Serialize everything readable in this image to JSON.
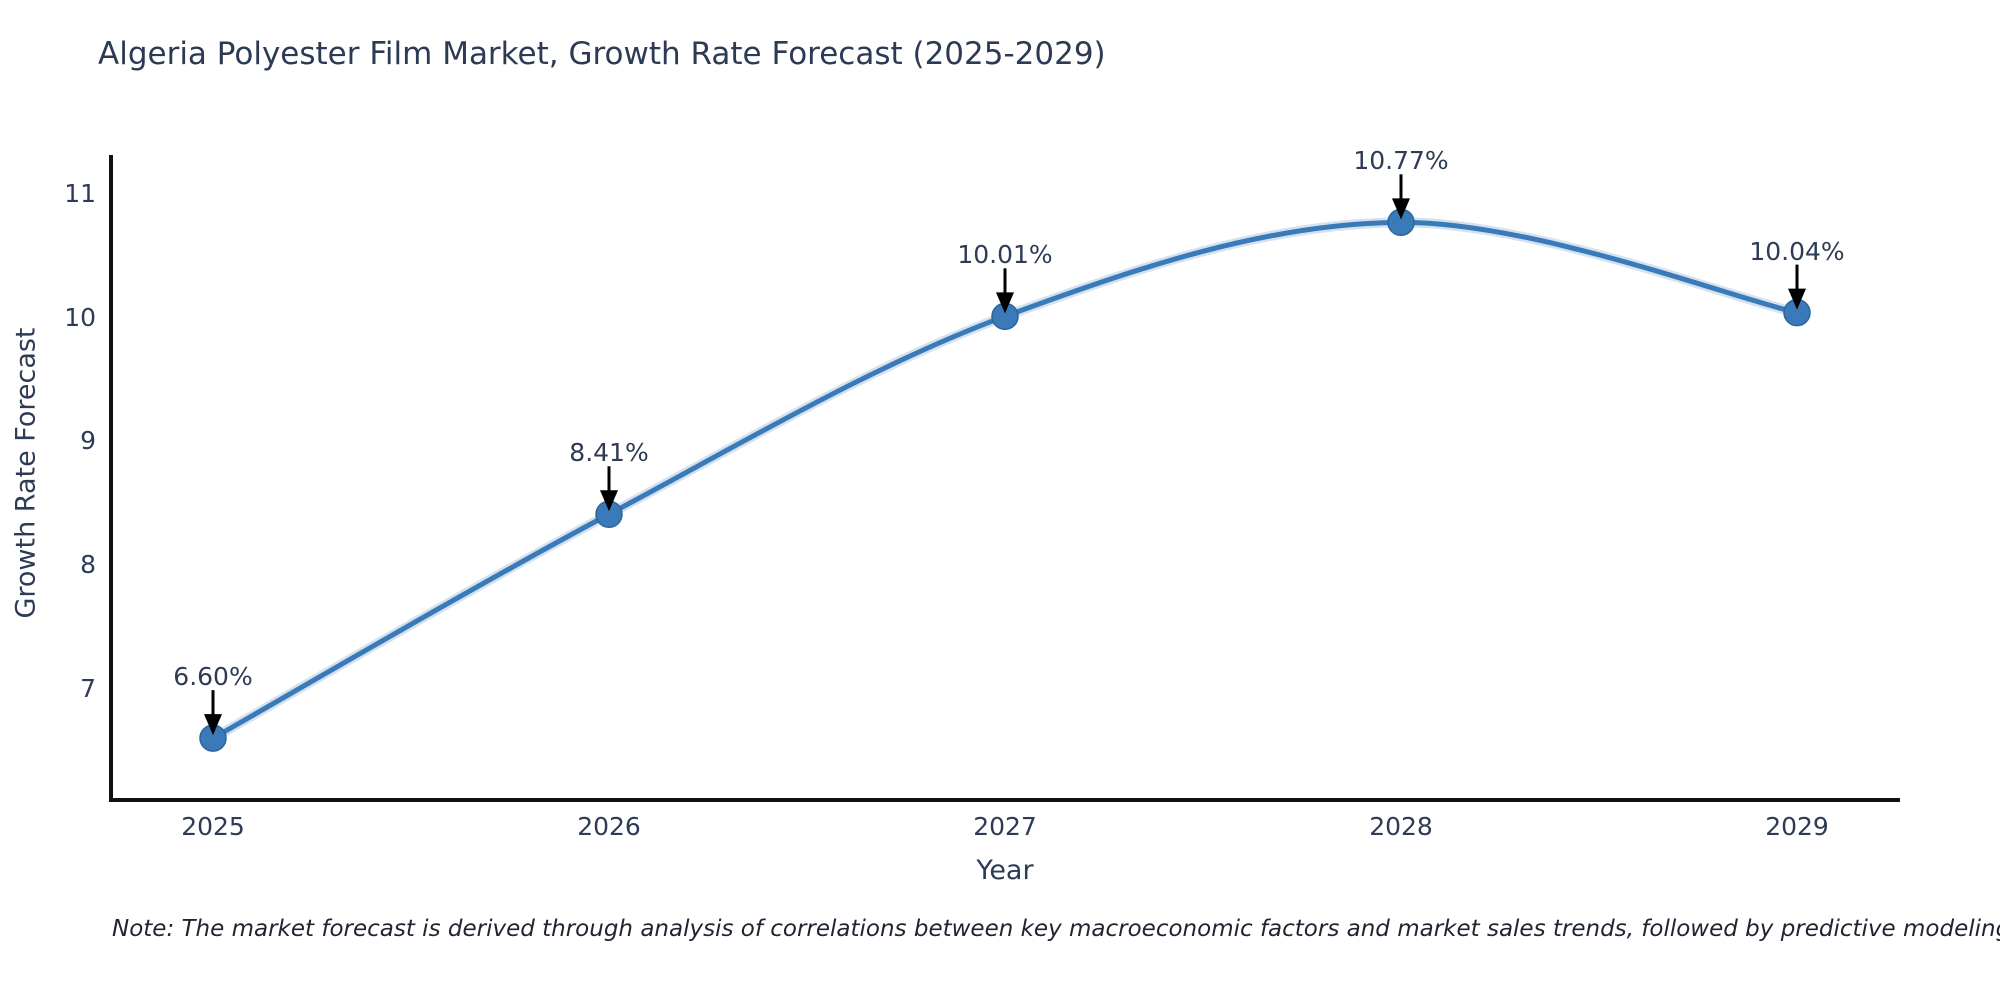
{
  "title": "Algeria Polyester Film Market, Growth Rate Forecast (2025-2029)",
  "note": "Note: The market forecast is derived through analysis of correlations between key macroeconomic factors and market sales trends, followed by predictive modeling to project future sales",
  "chart_data": {
    "type": "line",
    "title": "Algeria Polyester Film Market, Growth Rate Forecast (2025-2029)",
    "xlabel": "Year",
    "ylabel": "Growth Rate Forecast",
    "x": [
      "2025",
      "2026",
      "2027",
      "2028",
      "2029"
    ],
    "values": [
      6.6,
      8.41,
      10.01,
      10.77,
      10.04
    ],
    "point_labels": [
      "6.60%",
      "8.41%",
      "10.01%",
      "10.77%",
      "10.04%"
    ],
    "yticks": [
      "11",
      "10",
      "9",
      "8",
      "7"
    ],
    "ytick_values": [
      11,
      10,
      9,
      8,
      7
    ],
    "ylim": [
      6.1,
      11.3
    ],
    "grid": false,
    "legend": "none",
    "annotations": "each point labeled with percent value and downward black arrow",
    "colors": {
      "line": "#3a7ab8",
      "marker": "#3a7ab8",
      "marker_edge": "#2e659c",
      "axis": "#111111",
      "text": "#2d3b55",
      "arrow": "#000000"
    }
  }
}
